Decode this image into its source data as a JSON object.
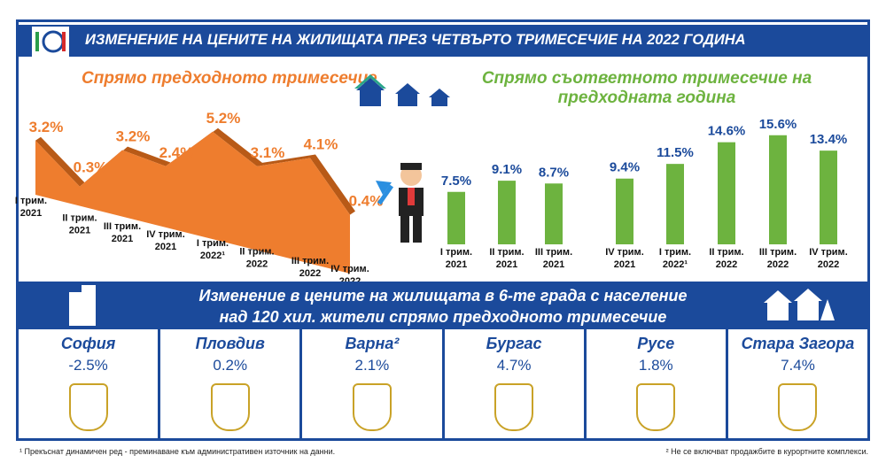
{
  "header": {
    "title": "ИЗМЕНЕНИЕ НА ЦЕНИТЕ НА ЖИЛИЩАТА ПРЕЗ ЧЕТВЪРТО ТРИМЕСЕЧИЕ НА 2022 ГОДИНА",
    "logo": "НСИ"
  },
  "colors": {
    "blue": "#1b4a9b",
    "orange": "#ee7d2e",
    "green": "#6db33f"
  },
  "chart_data": [
    {
      "type": "area",
      "title": "Спрямо предходното тримесечие",
      "categories": [
        [
          "I трим.",
          "2021"
        ],
        [
          "II трим.",
          "2021"
        ],
        [
          "III трим.",
          "2021"
        ],
        [
          "IV трим.",
          "2021"
        ],
        [
          "I трим.",
          "2022¹"
        ],
        [
          "II трим.",
          "2022"
        ],
        [
          "III трим.",
          "2022"
        ],
        [
          "IV трим.",
          "2022"
        ]
      ],
      "values": [
        3.2,
        0.3,
        3.2,
        2.4,
        5.2,
        3.1,
        4.1,
        0.4
      ],
      "labels": [
        "3.2%",
        "0.3%",
        "3.2%",
        "2.4%",
        "5.2%",
        "3.1%",
        "4.1%",
        "0.4%"
      ]
    },
    {
      "type": "bar",
      "title": "Спрямо съответното тримесечие на предходната година",
      "categories": [
        [
          "I трим.",
          "2021"
        ],
        [
          "II трим.",
          "2021"
        ],
        [
          "III трим.",
          "2021"
        ],
        [
          "IV трим.",
          "2021"
        ],
        [
          "I трим.",
          "2022¹"
        ],
        [
          "II трим.",
          "2022"
        ],
        [
          "III трим.",
          "2022"
        ],
        [
          "IV трим.",
          "2022"
        ]
      ],
      "values": [
        7.5,
        9.1,
        8.7,
        9.4,
        11.5,
        14.6,
        15.6,
        13.4
      ],
      "labels": [
        "7.5%",
        "9.1%",
        "8.7%",
        "9.4%",
        "11.5%",
        "14.6%",
        "15.6%",
        "13.4%"
      ]
    }
  ],
  "section": {
    "title_line1": "Изменение в цените на жилищата в 6-те града с население",
    "title_line2": "над 120 хил. жители спрямо предходното тримесечие"
  },
  "cities": [
    {
      "name": "София",
      "value": "-2.5%"
    },
    {
      "name": "Пловдив",
      "value": "0.2%"
    },
    {
      "name": "Варна²",
      "value": "2.1%"
    },
    {
      "name": "Бургас",
      "value": "4.7%"
    },
    {
      "name": "Русе",
      "value": "1.8%"
    },
    {
      "name": "Стара Загора",
      "value": "7.4%"
    }
  ],
  "footnotes": {
    "left": "¹ Прекъснат динамичен ред - преминаване към административен източник на данни.",
    "right": "² Не се включват продажбите в курортните комплекси."
  }
}
